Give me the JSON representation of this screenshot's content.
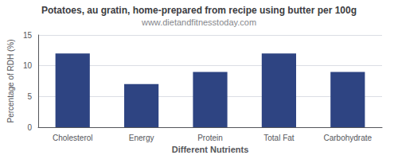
{
  "chart_data": {
    "type": "bar",
    "title": "Potatoes, au gratin, home-prepared from recipe using butter per 100g",
    "subtitle": "www.dietandfitnesstoday.com",
    "xlabel": "Different Nutrients",
    "ylabel": "Percentage of RDH (%)",
    "categories": [
      "Cholesterol",
      "Energy",
      "Protein",
      "Total Fat",
      "Carbohydrate"
    ],
    "values": [
      12.0,
      7.0,
      9.0,
      12.0,
      9.0
    ],
    "color": "#2e4482",
    "ylim": [
      0,
      15
    ],
    "yticks": [
      0,
      5,
      10,
      15
    ],
    "grid": true
  }
}
